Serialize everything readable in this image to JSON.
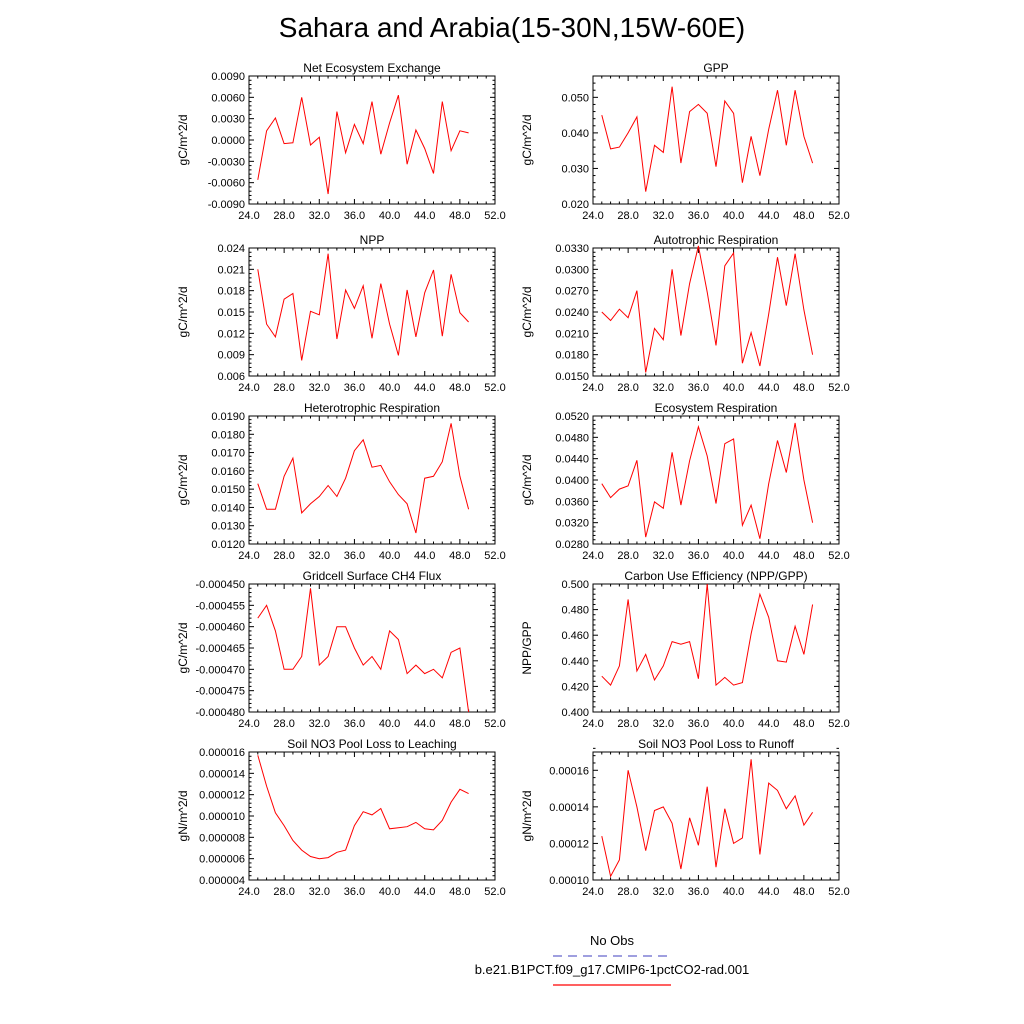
{
  "title": "Sahara and Arabia(15-30N,15W-60E)",
  "legend": [
    {
      "label": "No Obs",
      "color": "#6666cc",
      "dash": true
    },
    {
      "label": "b.e21.B1PCT.f09_g17.CMIP6-1pctCO2-rad.001",
      "color": "#ff0000",
      "dash": false
    }
  ],
  "chart_data": [
    {
      "type": "line",
      "title": "Net Ecosystem Exchange",
      "ylabel": "gC/m^2/d",
      "xlim": [
        24,
        52
      ],
      "ylim": [
        -0.009,
        0.009
      ],
      "xticks": [
        "24.0",
        "28.0",
        "32.0",
        "36.0",
        "40.0",
        "44.0",
        "48.0",
        "52.0"
      ],
      "yticks": [
        "-0.0090",
        "-0.0060",
        "-0.0030",
        "0.0000",
        "0.0030",
        "0.0060",
        "0.0090"
      ],
      "series": [
        {
          "color": "#ff0000",
          "x": [
            25,
            26,
            27,
            28,
            29,
            30,
            31,
            32,
            33,
            34,
            35,
            36,
            37,
            38,
            39,
            40,
            41,
            42,
            43,
            44,
            45,
            46,
            47,
            48,
            49
          ],
          "y": [
            -0.0056,
            0.0013,
            0.0031,
            -0.0005,
            -0.0004,
            0.006,
            -0.0007,
            0.0004,
            -0.0076,
            0.004,
            -0.0018,
            0.0022,
            -0.0005,
            0.0054,
            -0.002,
            0.0024,
            0.0063,
            -0.0034,
            0.0014,
            -0.0012,
            -0.0047,
            0.0054,
            -0.0015,
            0.0013,
            0.001
          ]
        }
      ]
    },
    {
      "type": "line",
      "title": "GPP",
      "ylabel": "gC/m^2/d",
      "xlim": [
        24,
        52
      ],
      "ylim": [
        0.02,
        0.056
      ],
      "xticks": [
        "24.0",
        "28.0",
        "32.0",
        "36.0",
        "40.0",
        "44.0",
        "48.0",
        "52.0"
      ],
      "yticks": [
        "0.020",
        "0.030",
        "0.040",
        "0.050"
      ],
      "series": [
        {
          "color": "#ff0000",
          "x": [
            25,
            26,
            27,
            28,
            29,
            30,
            31,
            32,
            33,
            34,
            35,
            36,
            37,
            38,
            39,
            40,
            41,
            42,
            43,
            44,
            45,
            46,
            47,
            48,
            49
          ],
          "y": [
            0.045,
            0.0355,
            0.036,
            0.04,
            0.0445,
            0.0235,
            0.0365,
            0.0345,
            0.053,
            0.0315,
            0.046,
            0.048,
            0.0455,
            0.0305,
            0.049,
            0.0455,
            0.026,
            0.039,
            0.028,
            0.041,
            0.052,
            0.0365,
            0.052,
            0.039,
            0.0315
          ]
        }
      ]
    },
    {
      "type": "line",
      "title": "NPP",
      "ylabel": "gC/m^2/d",
      "xlim": [
        24,
        52
      ],
      "ylim": [
        0.006,
        0.024
      ],
      "xticks": [
        "24.0",
        "28.0",
        "32.0",
        "36.0",
        "40.0",
        "44.0",
        "48.0",
        "52.0"
      ],
      "yticks": [
        "0.006",
        "0.009",
        "0.012",
        "0.015",
        "0.018",
        "0.021",
        "0.024"
      ],
      "series": [
        {
          "color": "#ff0000",
          "x": [
            25,
            26,
            27,
            28,
            29,
            30,
            31,
            32,
            33,
            34,
            35,
            36,
            37,
            38,
            39,
            40,
            41,
            42,
            43,
            44,
            45,
            46,
            47,
            48,
            49
          ],
          "y": [
            0.021,
            0.0133,
            0.0115,
            0.0168,
            0.0176,
            0.0082,
            0.0151,
            0.0146,
            0.0232,
            0.0112,
            0.0181,
            0.0155,
            0.0187,
            0.0113,
            0.019,
            0.0133,
            0.0089,
            0.0181,
            0.0115,
            0.0177,
            0.0209,
            0.0116,
            0.0203,
            0.0149,
            0.0136
          ]
        }
      ]
    },
    {
      "type": "line",
      "title": "Autotrophic Respiration",
      "ylabel": "gC/m^2/d",
      "xlim": [
        24,
        52
      ],
      "ylim": [
        0.015,
        0.033
      ],
      "xticks": [
        "24.0",
        "28.0",
        "32.0",
        "36.0",
        "40.0",
        "44.0",
        "48.0",
        "52.0"
      ],
      "yticks": [
        "0.0150",
        "0.0180",
        "0.0210",
        "0.0240",
        "0.0270",
        "0.0300",
        "0.0330"
      ],
      "series": [
        {
          "color": "#ff0000",
          "x": [
            25,
            26,
            27,
            28,
            29,
            30,
            31,
            32,
            33,
            34,
            35,
            36,
            37,
            38,
            39,
            40,
            41,
            42,
            43,
            44,
            45,
            46,
            47,
            48,
            49
          ],
          "y": [
            0.024,
            0.0228,
            0.0244,
            0.0232,
            0.027,
            0.0155,
            0.0217,
            0.0201,
            0.03,
            0.0207,
            0.028,
            0.0333,
            0.0268,
            0.0193,
            0.0305,
            0.0323,
            0.0168,
            0.0211,
            0.0164,
            0.0237,
            0.0317,
            0.0249,
            0.0322,
            0.0243,
            0.018
          ]
        }
      ]
    },
    {
      "type": "line",
      "title": "Heterotrophic Respiration",
      "ylabel": "gC/m^2/d",
      "xlim": [
        24,
        52
      ],
      "ylim": [
        0.012,
        0.019
      ],
      "xticks": [
        "24.0",
        "28.0",
        "32.0",
        "36.0",
        "40.0",
        "44.0",
        "48.0",
        "52.0"
      ],
      "yticks": [
        "0.0120",
        "0.0130",
        "0.0140",
        "0.0150",
        "0.0160",
        "0.0170",
        "0.0180",
        "0.0190"
      ],
      "series": [
        {
          "color": "#ff0000",
          "x": [
            25,
            26,
            27,
            28,
            29,
            30,
            31,
            32,
            33,
            34,
            35,
            36,
            37,
            38,
            39,
            40,
            41,
            42,
            43,
            44,
            45,
            46,
            47,
            48,
            49
          ],
          "y": [
            0.0153,
            0.0139,
            0.0139,
            0.0157,
            0.0167,
            0.0137,
            0.0142,
            0.0146,
            0.0152,
            0.0146,
            0.0156,
            0.0171,
            0.0177,
            0.0162,
            0.0163,
            0.0154,
            0.0147,
            0.0142,
            0.0126,
            0.0156,
            0.0157,
            0.0165,
            0.0186,
            0.0157,
            0.0139
          ]
        }
      ]
    },
    {
      "type": "line",
      "title": "Ecosystem Respiration",
      "ylabel": "gC/m^2/d",
      "xlim": [
        24,
        52
      ],
      "ylim": [
        0.028,
        0.052
      ],
      "xticks": [
        "24.0",
        "28.0",
        "32.0",
        "36.0",
        "40.0",
        "44.0",
        "48.0",
        "52.0"
      ],
      "yticks": [
        "0.0280",
        "0.0320",
        "0.0360",
        "0.0400",
        "0.0440",
        "0.0480",
        "0.0520"
      ],
      "series": [
        {
          "color": "#ff0000",
          "x": [
            25,
            26,
            27,
            28,
            29,
            30,
            31,
            32,
            33,
            34,
            35,
            36,
            37,
            38,
            39,
            40,
            41,
            42,
            43,
            44,
            45,
            46,
            47,
            48,
            49
          ],
          "y": [
            0.0393,
            0.0367,
            0.0383,
            0.0389,
            0.0437,
            0.0293,
            0.0359,
            0.0347,
            0.0452,
            0.0353,
            0.0436,
            0.05,
            0.0445,
            0.0356,
            0.0468,
            0.0477,
            0.0315,
            0.0353,
            0.029,
            0.0393,
            0.0474,
            0.0414,
            0.0507,
            0.04,
            0.032
          ]
        }
      ]
    },
    {
      "type": "line",
      "title": "Gridcell Surface CH4 Flux",
      "ylabel": "gC/m^2/d",
      "xlim": [
        24,
        52
      ],
      "ylim": [
        -0.00048,
        -0.00045
      ],
      "xticks": [
        "24.0",
        "28.0",
        "32.0",
        "36.0",
        "40.0",
        "44.0",
        "48.0",
        "52.0"
      ],
      "yticks": [
        "-0.000480",
        "-0.000475",
        "-0.000470",
        "-0.000465",
        "-0.000460",
        "-0.000455",
        "-0.000450"
      ],
      "series": [
        {
          "color": "#ff0000",
          "x": [
            25,
            26,
            27,
            28,
            29,
            30,
            31,
            32,
            33,
            34,
            35,
            36,
            37,
            38,
            39,
            40,
            41,
            42,
            43,
            44,
            45,
            46,
            47,
            48,
            49
          ],
          "y": [
            -0.000458,
            -0.000455,
            -0.000461,
            -0.00047,
            -0.00047,
            -0.000467,
            -0.000451,
            -0.000469,
            -0.000467,
            -0.00046,
            -0.00046,
            -0.000465,
            -0.000469,
            -0.000467,
            -0.00047,
            -0.000461,
            -0.000463,
            -0.000471,
            -0.000469,
            -0.000471,
            -0.00047,
            -0.000472,
            -0.000466,
            -0.000465,
            -0.00048
          ]
        }
      ]
    },
    {
      "type": "line",
      "title": "Carbon Use Efficiency (NPP/GPP)",
      "ylabel": "NPP/GPP",
      "xlim": [
        24,
        52
      ],
      "ylim": [
        0.4,
        0.5
      ],
      "xticks": [
        "24.0",
        "28.0",
        "32.0",
        "36.0",
        "40.0",
        "44.0",
        "48.0",
        "52.0"
      ],
      "yticks": [
        "0.400",
        "0.420",
        "0.440",
        "0.460",
        "0.480",
        "0.500"
      ],
      "series": [
        {
          "color": "#ff0000",
          "x": [
            25,
            26,
            27,
            28,
            29,
            30,
            31,
            32,
            33,
            34,
            35,
            36,
            37,
            38,
            39,
            40,
            41,
            42,
            43,
            44,
            45,
            46,
            47,
            48,
            49
          ],
          "y": [
            0.428,
            0.421,
            0.436,
            0.488,
            0.432,
            0.445,
            0.425,
            0.436,
            0.455,
            0.453,
            0.455,
            0.426,
            0.5,
            0.421,
            0.427,
            0.421,
            0.423,
            0.461,
            0.492,
            0.474,
            0.44,
            0.439,
            0.467,
            0.445,
            0.484
          ]
        }
      ]
    },
    {
      "type": "line",
      "title": "Soil NO3 Pool Loss to Leaching",
      "ylabel": "gN/m^2/d",
      "xlim": [
        24,
        52
      ],
      "ylim": [
        4e-06,
        1.6e-05
      ],
      "xticks": [
        "24.0",
        "28.0",
        "32.0",
        "36.0",
        "40.0",
        "44.0",
        "48.0",
        "52.0"
      ],
      "yticks": [
        "0.000004",
        "0.000006",
        "0.000008",
        "0.000010",
        "0.000012",
        "0.000014",
        "0.000016"
      ],
      "series": [
        {
          "color": "#ff0000",
          "x": [
            25,
            26,
            27,
            28,
            29,
            30,
            31,
            32,
            33,
            34,
            35,
            36,
            37,
            38,
            39,
            40,
            41,
            42,
            43,
            44,
            45,
            46,
            47,
            48,
            49
          ],
          "y": [
            1.57e-05,
            1.28e-05,
            1.03e-05,
            9.1e-06,
            7.7e-06,
            6.8e-06,
            6.2e-06,
            6e-06,
            6.1e-06,
            6.6e-06,
            6.8e-06,
            9.1e-06,
            1.04e-05,
            1.01e-05,
            1.07e-05,
            8.8e-06,
            8.9e-06,
            9e-06,
            9.4e-06,
            8.8e-06,
            8.7e-06,
            9.6e-06,
            1.13e-05,
            1.25e-05,
            1.21e-05
          ]
        }
      ]
    },
    {
      "type": "line",
      "title": "Soil NO3 Pool Loss to Runoff",
      "ylabel": "gN/m^2/d",
      "xlim": [
        24,
        52
      ],
      "ylim": [
        0.0001,
        0.00017
      ],
      "xticks": [
        "24.0",
        "28.0",
        "32.0",
        "36.0",
        "40.0",
        "44.0",
        "48.0",
        "52.0"
      ],
      "yticks": [
        "0.00010",
        "0.00012",
        "0.00014",
        "0.00016"
      ],
      "series": [
        {
          "color": "#ff0000",
          "x": [
            25,
            26,
            27,
            28,
            29,
            30,
            31,
            32,
            33,
            34,
            35,
            36,
            37,
            38,
            39,
            40,
            41,
            42,
            43,
            44,
            45,
            46,
            47,
            48,
            49
          ],
          "y": [
            0.000124,
            0.000102,
            0.000111,
            0.00016,
            0.00014,
            0.000116,
            0.000138,
            0.00014,
            0.000131,
            0.000106,
            0.000134,
            0.000119,
            0.000151,
            0.000107,
            0.000139,
            0.00012,
            0.000123,
            0.000166,
            0.000114,
            0.000153,
            0.000149,
            0.000139,
            0.000146,
            0.00013,
            0.000137
          ]
        }
      ]
    }
  ]
}
